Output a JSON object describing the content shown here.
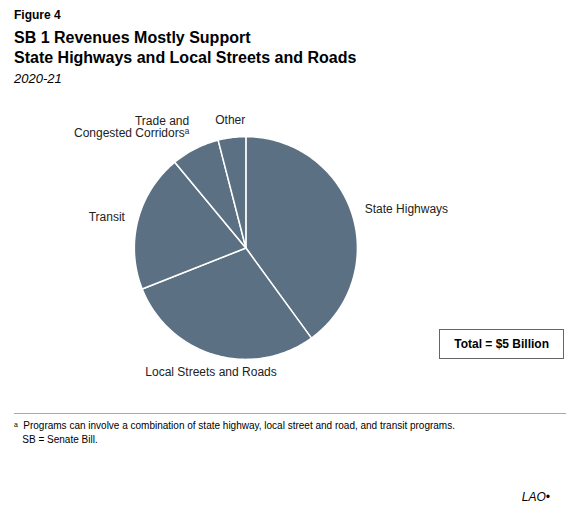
{
  "chart_data": {
    "type": "pie",
    "title": "SB 1 Revenues Mostly Support\nState Highways and Local Streets and Roads",
    "subtitle": "2020-21",
    "categories": [
      "State Highways",
      "Local Streets and Roads",
      "Transit",
      "Trade and\nCongested Corridorsᵃ",
      "Other"
    ],
    "values": [
      40,
      29,
      20,
      7,
      4
    ],
    "color": "#5b7183",
    "annotations": [
      "Figure 4",
      "Total = $5 Billion",
      "ᵃ  Programs can involve a combination of state highway, local street and road, and transit programs.",
      "SB = Senate Bill.",
      "LAO•"
    ]
  }
}
